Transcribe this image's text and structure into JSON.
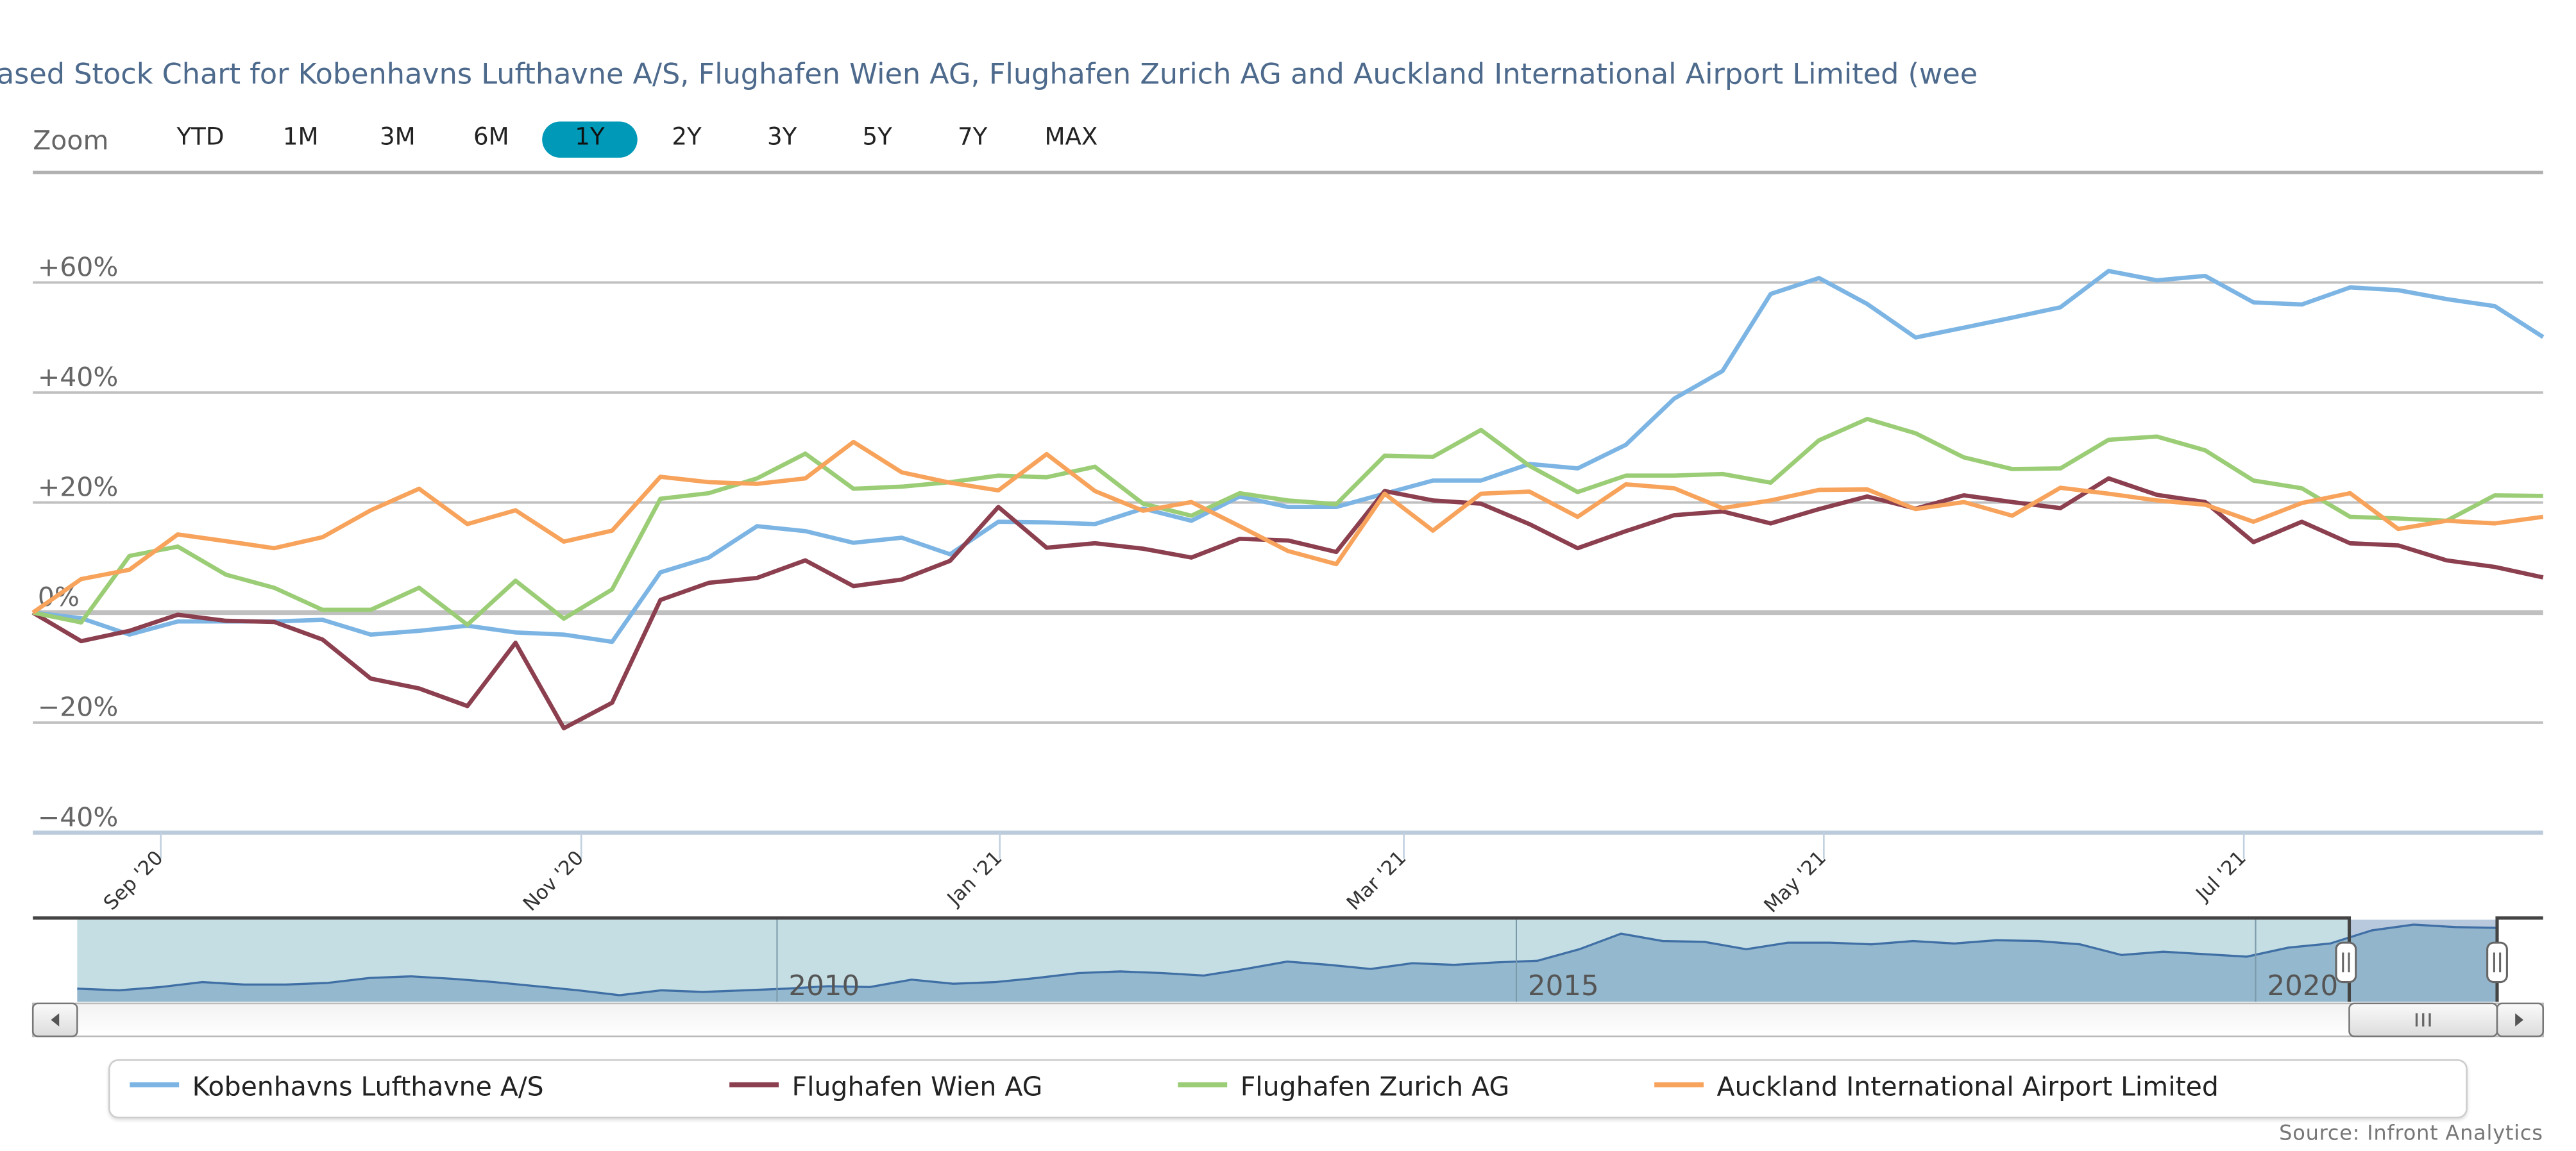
{
  "title": "ased Stock Chart for Kobenhavns Lufthavne A/S, Flughafen Wien AG, Flughafen Zurich AG and Auckland International Airport Limited (wee",
  "zoom": {
    "label": "Zoom",
    "buttons": [
      "YTD",
      "1M",
      "3M",
      "6M",
      "1Y",
      "2Y",
      "3Y",
      "5Y",
      "7Y",
      "MAX"
    ],
    "selected": "1Y",
    "selected_color": "#0099b8"
  },
  "source": "Source: Infront Analytics",
  "chart_data": {
    "type": "line",
    "title": "...ased Stock Chart for Kobenhavns Lufthavne A/S, Flughafen Wien AG, Flughafen Zurich AG and Auckland International Airport Limited (wee",
    "xlabel": "",
    "ylabel": "",
    "x_unit": "week index (weekly data, ~Aug 2020 to Aug 2021)",
    "ylim": [
      -40,
      80
    ],
    "yticks": [
      60,
      40,
      20,
      0,
      -20,
      -40
    ],
    "ytick_labels": [
      "+60%",
      "+40%",
      "+20%",
      "0%",
      "−20%",
      "−40%"
    ],
    "xticks": [
      2.65,
      11.36,
      20.03,
      28.4,
      37.1,
      45.8
    ],
    "xtick_labels": [
      "Sep '20",
      "Nov '20",
      "Jan '21",
      "Mar '21",
      "May '21",
      "Jul '21"
    ],
    "grid": true,
    "legend_position": "bottom",
    "series": [
      {
        "name": "Kobenhavns Lufthavne A/S",
        "color": "#7cb5e4",
        "values": [
          0,
          -1,
          -4,
          -1.6,
          -1.6,
          -1.6,
          -1.3,
          -4,
          -3.3,
          -2.4,
          -3.6,
          -4,
          -5.3,
          7.3,
          10,
          15.7,
          14.8,
          12.7,
          13.6,
          10.6,
          16.5,
          16.4,
          16.1,
          18.9,
          16.7,
          21.1,
          19.2,
          19.2,
          21.6,
          24,
          24,
          27,
          26.2,
          30.5,
          38.9,
          43.9,
          57.9,
          60.8,
          56.1,
          50,
          51.8,
          53.6,
          55.5,
          62.1,
          60.4,
          61.2,
          56.4,
          56,
          59.1,
          58.6,
          57,
          55.7,
          50.1
        ]
      },
      {
        "name": "Flughafen Wien AG",
        "color": "#8b3f4f",
        "values": [
          0,
          -5.2,
          -3.3,
          -0.4,
          -1.5,
          -1.7,
          -4.9,
          -12,
          -13.8,
          -17,
          -5.5,
          -21,
          -16.4,
          2.3,
          5.4,
          6.3,
          9.5,
          4.8,
          6,
          9.4,
          19.2,
          11.8,
          12.6,
          11.6,
          10,
          13.4,
          13.1,
          11,
          22.1,
          20.4,
          19.8,
          16.1,
          11.7,
          14.8,
          17.7,
          18.4,
          16.2,
          18.8,
          21.1,
          18.9,
          21.3,
          20.1,
          19,
          24.4,
          21.4,
          20.1,
          12.8,
          16.5,
          12.6,
          12.2,
          9.5,
          8.3,
          6.4
        ]
      },
      {
        "name": "Flughafen Zurich AG",
        "color": "#9bcd76",
        "values": [
          0,
          -1.8,
          10.3,
          12,
          6.9,
          4.5,
          0.5,
          0.5,
          4.5,
          -2.2,
          5.8,
          -1.1,
          4.2,
          20.7,
          21.7,
          24.4,
          28.9,
          22.5,
          22.9,
          23.7,
          24.9,
          24.6,
          26.5,
          19.8,
          17.6,
          21.7,
          20.4,
          19.7,
          28.5,
          28.3,
          33.2,
          26.7,
          21.9,
          24.9,
          24.9,
          25.2,
          23.6,
          31.3,
          35.2,
          32.6,
          28.2,
          26.1,
          26.2,
          31.4,
          32,
          29.5,
          24,
          22.6,
          17.4,
          17.1,
          16.7,
          21.3,
          21.2
        ]
      },
      {
        "name": "Auckland International Airport Limited",
        "color": "#f7a35c",
        "values": [
          0,
          6.1,
          7.8,
          14.2,
          13,
          11.7,
          13.7,
          18.6,
          22.5,
          16.1,
          18.6,
          12.9,
          14.9,
          24.7,
          23.7,
          23.4,
          24.4,
          31,
          25.5,
          23.6,
          22.2,
          28.8,
          22.1,
          18.5,
          20.1,
          15.7,
          11.2,
          8.8,
          21.6,
          14.9,
          21.6,
          22,
          17.4,
          23.3,
          22.6,
          19,
          20.4,
          22.3,
          22.4,
          18.8,
          20.1,
          17.6,
          22.7,
          21.6,
          20.4,
          19.6,
          16.5,
          19.9,
          21.7,
          15.2,
          16.7,
          16.2,
          17.4
        ]
      }
    ],
    "navigator": {
      "year_labels": [
        "2010",
        "2015",
        "2020"
      ],
      "relative_values": [
        16,
        14,
        18,
        24,
        21,
        21,
        23,
        29,
        31,
        28,
        24,
        19,
        14,
        8,
        14,
        12,
        14,
        16,
        19,
        18,
        27,
        22,
        24,
        29,
        35,
        37,
        35,
        32,
        40,
        49,
        45,
        40,
        47,
        45,
        48,
        50,
        64,
        83,
        74,
        73,
        64,
        72,
        72,
        70,
        74,
        71,
        75,
        74,
        70,
        57,
        61,
        58,
        55,
        66,
        71,
        87,
        94,
        91,
        90
      ]
    },
    "selected_range": "1Y"
  }
}
